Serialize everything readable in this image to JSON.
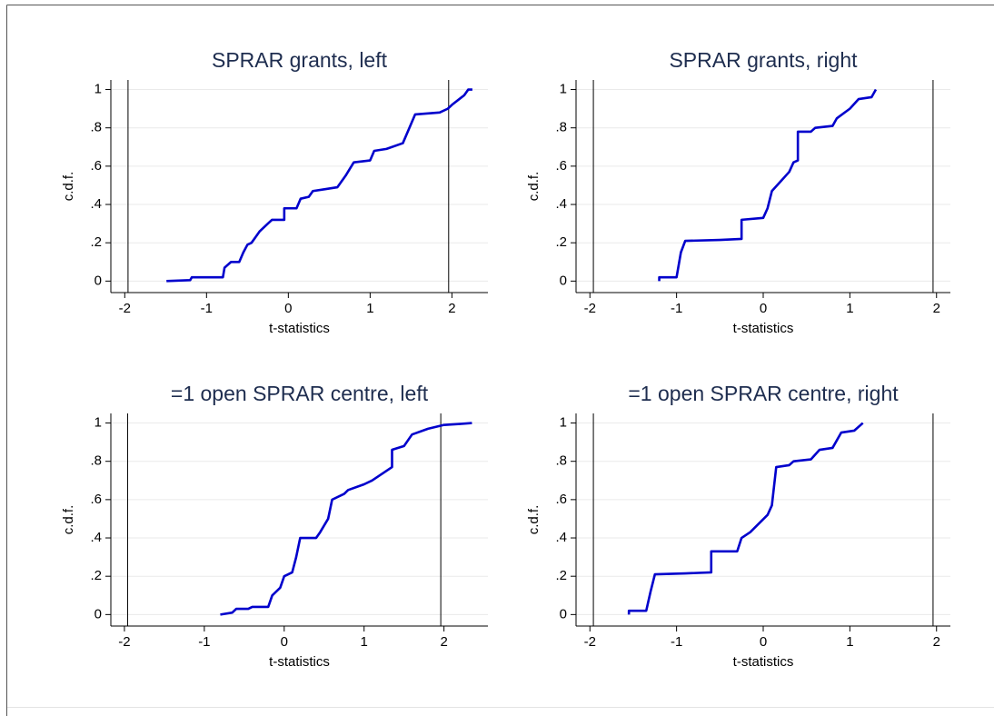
{
  "chart_data": [
    {
      "type": "line",
      "title": "SPRAR grants, left",
      "xlabel": "t-statistics",
      "ylabel": "c.d.f.",
      "color": "#0000cc",
      "x": [
        -1.49,
        -1.2,
        -1.18,
        -0.8,
        -0.78,
        -0.7,
        -0.6,
        -0.55,
        -0.5,
        -0.45,
        -0.4,
        -0.35,
        -0.25,
        -0.2,
        -0.05,
        -0.05,
        0.1,
        0.15,
        0.25,
        0.3,
        0.45,
        0.6,
        0.7,
        0.8,
        1.0,
        1.05,
        1.2,
        1.4,
        1.5,
        1.55,
        1.85,
        1.95,
        2.0,
        2.15,
        2.2,
        2.25
      ],
      "values": [
        0,
        0.005,
        0.02,
        0.02,
        0.07,
        0.1,
        0.1,
        0.15,
        0.19,
        0.2,
        0.23,
        0.26,
        0.3,
        0.32,
        0.32,
        0.38,
        0.38,
        0.43,
        0.44,
        0.47,
        0.48,
        0.49,
        0.55,
        0.62,
        0.63,
        0.68,
        0.69,
        0.72,
        0.82,
        0.87,
        0.88,
        0.9,
        0.92,
        0.97,
        1.0,
        1.0
      ],
      "vlines": [
        -1.96,
        1.96
      ],
      "xlim": [
        -2.17,
        2.44
      ],
      "ylim": [
        -0.06,
        1.05
      ],
      "xticks": [
        -2,
        -1,
        0,
        1,
        2
      ],
      "yticks": [
        0,
        {
          "value": 0.2,
          "label": ".2"
        },
        {
          "value": 0.4,
          "label": ".4"
        },
        {
          "value": 0.6,
          "label": ".6"
        },
        {
          "value": 0.8,
          "label": ".8"
        },
        1
      ],
      "grid": true
    },
    {
      "type": "line",
      "title": "SPRAR grants, right",
      "xlabel": "t-statistics",
      "ylabel": "c.d.f.",
      "color": "#0000cc",
      "x": [
        -1.2,
        -1.2,
        -1.0,
        -0.95,
        -0.9,
        -0.5,
        -0.25,
        -0.25,
        0.0,
        0.05,
        0.1,
        0.2,
        0.3,
        0.35,
        0.4,
        0.4,
        0.55,
        0.6,
        0.8,
        0.85,
        1.0,
        1.1,
        1.25,
        1.3
      ],
      "values": [
        0,
        0.02,
        0.02,
        0.15,
        0.21,
        0.215,
        0.22,
        0.32,
        0.33,
        0.38,
        0.47,
        0.52,
        0.57,
        0.62,
        0.63,
        0.78,
        0.78,
        0.8,
        0.81,
        0.85,
        0.9,
        0.95,
        0.96,
        1.0
      ],
      "vlines": [
        -1.96,
        1.96
      ],
      "xlim": [
        -2.16,
        2.16
      ],
      "ylim": [
        -0.06,
        1.05
      ],
      "xticks": [
        -2,
        -1,
        0,
        1,
        2
      ],
      "yticks": [
        0,
        {
          "value": 0.2,
          "label": ".2"
        },
        {
          "value": 0.4,
          "label": ".4"
        },
        {
          "value": 0.6,
          "label": ".6"
        },
        {
          "value": 0.8,
          "label": ".8"
        },
        1
      ],
      "grid": true
    },
    {
      "type": "line",
      "title": "=1 open SPRAR centre, left",
      "xlabel": "t-statistics",
      "ylabel": "c.d.f.",
      "color": "#0000cc",
      "x": [
        -0.8,
        -0.65,
        -0.6,
        -0.45,
        -0.4,
        -0.2,
        -0.15,
        -0.05,
        0.0,
        0.1,
        0.15,
        0.2,
        0.4,
        0.45,
        0.55,
        0.6,
        0.75,
        0.8,
        1.0,
        1.1,
        1.35,
        1.35,
        1.5,
        1.6,
        1.8,
        2.0,
        2.2,
        2.35
      ],
      "values": [
        0,
        0.01,
        0.03,
        0.03,
        0.04,
        0.04,
        0.1,
        0.14,
        0.2,
        0.22,
        0.3,
        0.4,
        0.4,
        0.43,
        0.5,
        0.6,
        0.63,
        0.65,
        0.68,
        0.7,
        0.77,
        0.86,
        0.88,
        0.94,
        0.97,
        0.99,
        0.995,
        1.0
      ],
      "vlines": [
        -1.96,
        1.96
      ],
      "xlim": [
        -2.17,
        2.55
      ],
      "ylim": [
        -0.06,
        1.05
      ],
      "xticks": [
        -2,
        -1,
        0,
        1,
        2
      ],
      "yticks": [
        0,
        {
          "value": 0.2,
          "label": ".2"
        },
        {
          "value": 0.4,
          "label": ".4"
        },
        {
          "value": 0.6,
          "label": ".6"
        },
        {
          "value": 0.8,
          "label": ".8"
        },
        1
      ],
      "grid": true
    },
    {
      "type": "line",
      "title": "=1 open SPRAR centre, right",
      "xlabel": "t-statistics",
      "ylabel": "c.d.f.",
      "color": "#0000cc",
      "x": [
        -1.55,
        -1.55,
        -1.35,
        -1.3,
        -1.25,
        -0.9,
        -0.6,
        -0.6,
        -0.3,
        -0.25,
        -0.15,
        0.05,
        0.1,
        0.15,
        0.3,
        0.35,
        0.55,
        0.65,
        0.8,
        0.9,
        1.05,
        1.15
      ],
      "values": [
        0,
        0.02,
        0.02,
        0.12,
        0.21,
        0.215,
        0.22,
        0.33,
        0.33,
        0.4,
        0.43,
        0.52,
        0.57,
        0.77,
        0.78,
        0.8,
        0.81,
        0.86,
        0.87,
        0.95,
        0.96,
        1.0
      ],
      "vlines": [
        -1.96,
        1.96
      ],
      "xlim": [
        -2.16,
        2.16
      ],
      "ylim": [
        -0.06,
        1.05
      ],
      "xticks": [
        -2,
        -1,
        0,
        1,
        2
      ],
      "yticks": [
        0,
        {
          "value": 0.2,
          "label": ".2"
        },
        {
          "value": 0.4,
          "label": ".4"
        },
        {
          "value": 0.6,
          "label": ".6"
        },
        {
          "value": 0.8,
          "label": ".8"
        },
        1
      ],
      "grid": true
    }
  ]
}
